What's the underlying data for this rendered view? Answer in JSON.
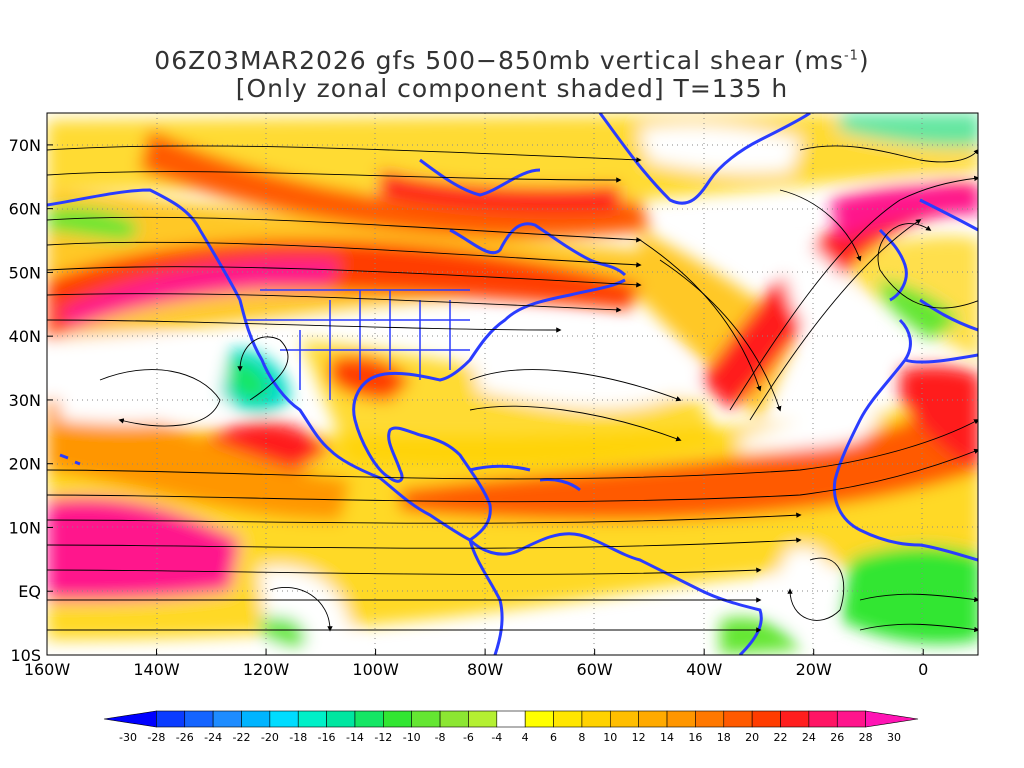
{
  "title": {
    "line1_main": "06Z03MAR2026 gfs 500−850mb vertical shear (ms",
    "line1_sup": "-1",
    "line1_end": ")",
    "line2": "[Only zonal component shaded] T=135 h"
  },
  "map": {
    "lon_range": [
      -160,
      10
    ],
    "lat_range": [
      -10,
      75
    ],
    "lon_ticks": [
      "160W",
      "140W",
      "120W",
      "100W",
      "80W",
      "60W",
      "40W",
      "20W",
      "0"
    ],
    "lon_tick_values": [
      -160,
      -140,
      -120,
      -100,
      -80,
      -60,
      -40,
      -20,
      0
    ],
    "lat_ticks": [
      "70N",
      "60N",
      "50N",
      "40N",
      "30N",
      "20N",
      "10N",
      "EQ",
      "10S"
    ],
    "lat_tick_values": [
      70,
      60,
      50,
      40,
      30,
      20,
      10,
      0,
      -10
    ],
    "coastline_color": "#2a3cff",
    "streamline_color": "#000000"
  },
  "colorbar": {
    "labels": [
      "-30",
      "-28",
      "-26",
      "-24",
      "-22",
      "-20",
      "-18",
      "-16",
      "-14",
      "-12",
      "-10",
      "-8",
      "-6",
      "-4",
      "4",
      "6",
      "8",
      "10",
      "12",
      "14",
      "16",
      "18",
      "20",
      "22",
      "24",
      "26",
      "28",
      "30"
    ],
    "colors": [
      "#0000ff",
      "#0a3cff",
      "#1464ff",
      "#1e8cff",
      "#00b4ff",
      "#00dcff",
      "#00f0c8",
      "#00e6a0",
      "#14e664",
      "#32e632",
      "#64e632",
      "#8ce632",
      "#b4f032",
      "#ffffff",
      "#ffff00",
      "#ffe600",
      "#ffd200",
      "#ffbe00",
      "#ffaa00",
      "#ff9600",
      "#ff7800",
      "#ff5a00",
      "#ff3c00",
      "#ff1e1e",
      "#ff1464",
      "#ff148c",
      "#ff14b4"
    ]
  }
}
